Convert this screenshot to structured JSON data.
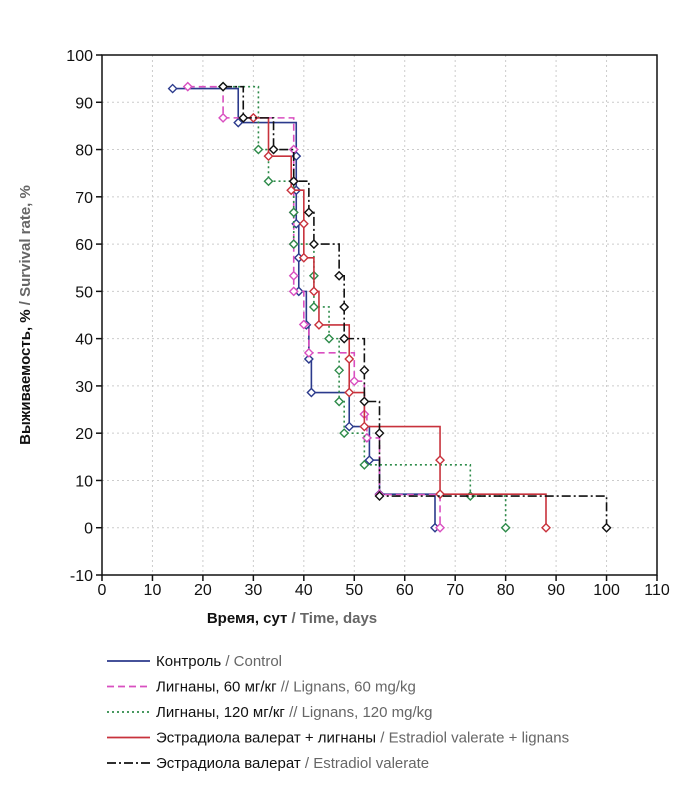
{
  "chart_data": {
    "type": "line",
    "subtype": "kaplan-meier-step",
    "xlabel_ru": "Время, сут",
    "xlabel_en": "/ Time, days",
    "ylabel_ru": "Выживаемость, %",
    "ylabel_en": "/ Survival rate, %",
    "xlim": [
      0,
      110
    ],
    "ylim": [
      -10,
      100
    ],
    "xticks": [
      "0",
      "10",
      "20",
      "30",
      "40",
      "50",
      "60",
      "70",
      "80",
      "90",
      "100",
      "110"
    ],
    "yticks": [
      "-10",
      "0",
      "10",
      "20",
      "30",
      "40",
      "50",
      "60",
      "70",
      "80",
      "90",
      "100"
    ],
    "grid": true,
    "legend_position": "bottom",
    "series": [
      {
        "name_ru": "Контроль",
        "name_en": "/ Control",
        "color": "#2b3a8c",
        "style": "solid",
        "points": [
          [
            14,
            92.9
          ],
          [
            27,
            85.7
          ],
          [
            38.5,
            78.6
          ],
          [
            38.5,
            71.4
          ],
          [
            38.5,
            64.3
          ],
          [
            39,
            57.1
          ],
          [
            39,
            50
          ],
          [
            40.5,
            42.9
          ],
          [
            41,
            35.7
          ],
          [
            41.5,
            28.6
          ],
          [
            49,
            21.4
          ],
          [
            53,
            14.3
          ],
          [
            55,
            7.1
          ],
          [
            66,
            0
          ]
        ]
      },
      {
        "name_ru": "Лигнаны, 60 мг/кг",
        "name_en": "// Lignans, 60 mg/kg",
        "color": "#d94fc0",
        "style": "dashed",
        "points": [
          [
            17,
            93.3
          ],
          [
            24,
            86.7
          ],
          [
            38,
            80
          ],
          [
            38,
            73.3
          ],
          [
            38,
            66.7
          ],
          [
            38,
            60
          ],
          [
            38,
            53.3
          ],
          [
            38,
            50
          ],
          [
            40,
            43
          ],
          [
            41,
            37
          ],
          [
            50,
            31
          ],
          [
            52,
            24
          ],
          [
            52.5,
            19
          ],
          [
            55,
            7
          ],
          [
            67,
            0
          ]
        ]
      },
      {
        "name_ru": "Лигнаны, 120 мг/кг",
        "name_en": "// Lignans, 120 mg/kg",
        "color": "#2e8b4a",
        "style": "dotted",
        "points": [
          [
            24,
            93.3
          ],
          [
            31,
            80
          ],
          [
            33,
            73.3
          ],
          [
            38,
            66.7
          ],
          [
            38,
            60
          ],
          [
            42,
            53.3
          ],
          [
            42,
            46.7
          ],
          [
            45,
            40
          ],
          [
            47,
            33.3
          ],
          [
            47,
            26.7
          ],
          [
            48,
            20
          ],
          [
            52,
            13.3
          ],
          [
            73,
            6.7
          ],
          [
            80,
            0
          ]
        ]
      },
      {
        "name_ru": "Эстрадиола валерат + лигнаны",
        "name_en": "/ Estradiol valerate + lignans",
        "color": "#c8323c",
        "style": "solid",
        "points": [
          [
            30,
            86.7
          ],
          [
            33,
            78.6
          ],
          [
            37.5,
            71.4
          ],
          [
            40,
            64.3
          ],
          [
            40,
            57.1
          ],
          [
            42,
            50
          ],
          [
            43,
            42.9
          ],
          [
            49,
            35.7
          ],
          [
            49,
            28.6
          ],
          [
            52,
            21.4
          ],
          [
            67,
            14.3
          ],
          [
            67,
            7.1
          ],
          [
            88,
            0
          ]
        ]
      },
      {
        "name_ru": "Эстрадиола валерат",
        "name_en": "/ Estradiol valerate",
        "color": "#111111",
        "style": "dashdot",
        "points": [
          [
            24,
            93.3
          ],
          [
            28,
            86.7
          ],
          [
            34,
            80
          ],
          [
            38,
            73.3
          ],
          [
            41,
            66.7
          ],
          [
            42,
            60
          ],
          [
            47,
            53.3
          ],
          [
            48,
            46.7
          ],
          [
            48,
            40
          ],
          [
            52,
            33.3
          ],
          [
            52,
            26.7
          ],
          [
            55,
            20
          ],
          [
            55,
            6.7
          ],
          [
            100,
            0
          ]
        ]
      }
    ]
  }
}
